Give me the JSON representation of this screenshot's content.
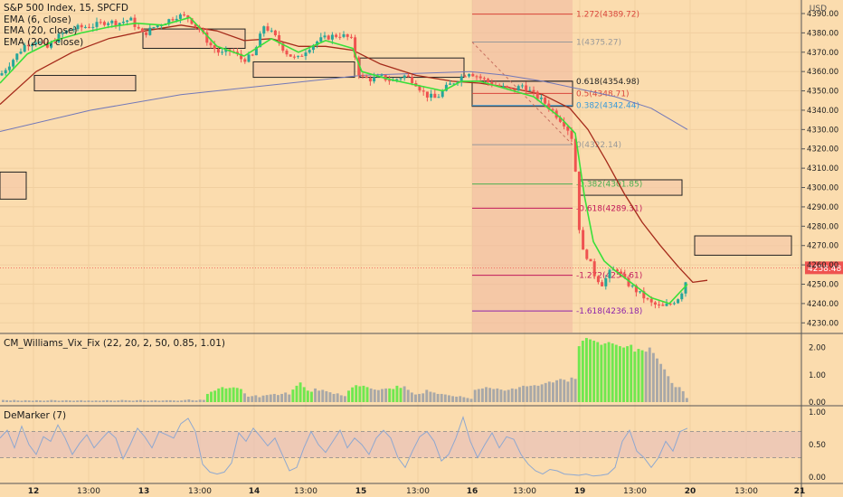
{
  "header": {
    "symbol": "S&P 500 Index, 15, SPCFD",
    "ema_lines": [
      "EMA (6, close)",
      "EMA (20, close)",
      "EMA (200, close)"
    ],
    "currency": "USD"
  },
  "panels": {
    "vix_fix_label": "CM_Williams_Vix_Fix (22, 20, 2, 50, 0.85, 1.01)",
    "demarker_label": "DeMarker (7)"
  },
  "colors": {
    "background": "#fbdcae",
    "up_candle": "#26a69a",
    "down_candle": "#ef5350",
    "ema6": "#39e039",
    "ema20": "#a52a1a",
    "ema200": "#7278b8",
    "vix_green": "#6fe84f",
    "vix_gray": "#a8a8a8",
    "demarker_line": "#8fa8d0",
    "fib_zone": "#f0b8a0"
  },
  "chart_data": [
    {
      "type": "candlestick",
      "title": "S&P 500 Index, 15, SPCFD",
      "y_unit": "USD",
      "ylim": [
        4225,
        4397
      ],
      "y_ticks": [
        4230,
        4240,
        4250,
        4260,
        4270,
        4280,
        4290,
        4300,
        4310,
        4320,
        4330,
        4340,
        4350,
        4360,
        4370,
        4380,
        4390
      ],
      "y_tick_labels": [
        "4230.00",
        "4240.00",
        "4250.00",
        "4260.00",
        "4270.00",
        "4280.00",
        "4290.00",
        "4300.00",
        "4310.00",
        "4320.00",
        "4330.00",
        "4340.00",
        "4350.00",
        "4360.00",
        "4370.00",
        "4380.00",
        "4390.00"
      ],
      "x_tick_labels": [
        "12",
        "13:00",
        "13",
        "13:00",
        "14",
        "13:00",
        "15",
        "13:00",
        "16",
        "13:00",
        "19",
        "13:00",
        "20",
        "13:00",
        "21"
      ],
      "last_price": 4258.48,
      "last_price_label": "4258.48",
      "price_path": [
        [
          0,
          4358
        ],
        [
          14,
          4366
        ],
        [
          28,
          4374
        ],
        [
          40,
          4376
        ],
        [
          52,
          4372
        ],
        [
          64,
          4378
        ],
        [
          78,
          4382
        ],
        [
          92,
          4383
        ],
        [
          106,
          4384
        ],
        [
          118,
          4386
        ],
        [
          130,
          4385
        ],
        [
          144,
          4387
        ],
        [
          158,
          4379
        ],
        [
          170,
          4383
        ],
        [
          184,
          4386
        ],
        [
          196,
          4389
        ],
        [
          208,
          4388
        ],
        [
          220,
          4382
        ],
        [
          232,
          4374
        ],
        [
          244,
          4369
        ],
        [
          256,
          4371
        ],
        [
          268,
          4366
        ],
        [
          280,
          4368
        ],
        [
          292,
          4384
        ],
        [
          304,
          4378
        ],
        [
          316,
          4370
        ],
        [
          328,
          4366
        ],
        [
          340,
          4372
        ],
        [
          352,
          4376
        ],
        [
          364,
          4378
        ],
        [
          376,
          4379
        ],
        [
          388,
          4377
        ],
        [
          398,
          4357
        ],
        [
          410,
          4356
        ],
        [
          422,
          4357
        ],
        [
          434,
          4355
        ],
        [
          446,
          4358
        ],
        [
          458,
          4355
        ],
        [
          470,
          4348
        ],
        [
          482,
          4346
        ],
        [
          494,
          4352
        ],
        [
          506,
          4356
        ],
        [
          518,
          4360
        ],
        [
          530,
          4357
        ],
        [
          542,
          4354
        ],
        [
          554,
          4352
        ],
        [
          566,
          4350
        ],
        [
          578,
          4353
        ],
        [
          590,
          4348
        ],
        [
          602,
          4344
        ],
        [
          614,
          4338
        ],
        [
          626,
          4332
        ],
        [
          634,
          4324
        ],
        [
          642,
          4268
        ],
        [
          650,
          4264
        ],
        [
          658,
          4254
        ],
        [
          666,
          4250
        ],
        [
          674,
          4256
        ],
        [
          682,
          4258
        ],
        [
          690,
          4252
        ],
        [
          700,
          4248
        ],
        [
          710,
          4244
        ],
        [
          720,
          4240
        ],
        [
          732,
          4238
        ],
        [
          742,
          4240
        ],
        [
          752,
          4244
        ],
        [
          760,
          4254
        ]
      ],
      "ema6_path": [
        [
          0,
          4354
        ],
        [
          30,
          4369
        ],
        [
          60,
          4376
        ],
        [
          90,
          4380
        ],
        [
          120,
          4383
        ],
        [
          150,
          4385
        ],
        [
          180,
          4384
        ],
        [
          210,
          4388
        ],
        [
          240,
          4373
        ],
        [
          270,
          4368
        ],
        [
          300,
          4377
        ],
        [
          330,
          4370
        ],
        [
          360,
          4376
        ],
        [
          390,
          4372
        ],
        [
          400,
          4360
        ],
        [
          430,
          4356
        ],
        [
          460,
          4353
        ],
        [
          490,
          4350
        ],
        [
          510,
          4355
        ],
        [
          530,
          4355
        ],
        [
          560,
          4351
        ],
        [
          590,
          4347
        ],
        [
          620,
          4336
        ],
        [
          636,
          4328
        ],
        [
          646,
          4296
        ],
        [
          656,
          4272
        ],
        [
          668,
          4262
        ],
        [
          680,
          4257
        ],
        [
          700,
          4250
        ],
        [
          720,
          4243
        ],
        [
          740,
          4240
        ],
        [
          760,
          4250
        ]
      ],
      "ema20_path": [
        [
          0,
          4343
        ],
        [
          40,
          4360
        ],
        [
          80,
          4370
        ],
        [
          120,
          4377
        ],
        [
          160,
          4381
        ],
        [
          200,
          4384
        ],
        [
          240,
          4381
        ],
        [
          270,
          4376
        ],
        [
          300,
          4377
        ],
        [
          330,
          4373
        ],
        [
          360,
          4373
        ],
        [
          390,
          4371
        ],
        [
          420,
          4364
        ],
        [
          460,
          4358
        ],
        [
          500,
          4355
        ],
        [
          530,
          4354
        ],
        [
          560,
          4352
        ],
        [
          600,
          4348
        ],
        [
          630,
          4341
        ],
        [
          650,
          4330
        ],
        [
          670,
          4314
        ],
        [
          690,
          4297
        ],
        [
          710,
          4282
        ],
        [
          730,
          4270
        ],
        [
          750,
          4259
        ],
        [
          766,
          4251
        ],
        [
          782,
          4252
        ]
      ],
      "ema200_path": [
        [
          0,
          4329
        ],
        [
          100,
          4340
        ],
        [
          200,
          4348
        ],
        [
          300,
          4353
        ],
        [
          400,
          4358
        ],
        [
          460,
          4359
        ],
        [
          520,
          4360
        ],
        [
          560,
          4358
        ],
        [
          600,
          4355
        ],
        [
          640,
          4351
        ],
        [
          680,
          4347
        ],
        [
          720,
          4341
        ],
        [
          760,
          4330
        ]
      ],
      "rect_zones": [
        {
          "x1": 0,
          "x2": 29,
          "top": 4308,
          "bottom": 4294
        },
        {
          "x1": 38,
          "x2": 150,
          "top": 4358,
          "bottom": 4350
        },
        {
          "x1": 158,
          "x2": 271,
          "top": 4382,
          "bottom": 4372
        },
        {
          "x1": 280,
          "x2": 392,
          "top": 4365,
          "bottom": 4357
        },
        {
          "x1": 398,
          "x2": 513,
          "top": 4367,
          "bottom": 4357
        },
        {
          "x1": 522,
          "x2": 633,
          "top": 4355,
          "bottom": 4342
        },
        {
          "x1": 641,
          "x2": 754,
          "top": 4304,
          "bottom": 4296
        },
        {
          "x1": 768,
          "x2": 875,
          "top": 4275,
          "bottom": 4265
        }
      ],
      "fibonacci": {
        "x_start": 522,
        "x_end": 633,
        "levels": [
          {
            "label": "1.272(4389.72)",
            "price": 4389.72,
            "color": "#d9453a"
          },
          {
            "label": "1(4375.27)",
            "price": 4375.27,
            "color": "#999999"
          },
          {
            "label": "0.618(4354.98)",
            "price": 4354.98,
            "color": "#222222"
          },
          {
            "label": "0.5(4348.71)",
            "price": 4348.71,
            "color": "#d9453a"
          },
          {
            "label": "0.382(4342.44)",
            "price": 4342.44,
            "color": "#3a9ad9"
          },
          {
            "label": "0(4322.14)",
            "price": 4322.14,
            "color": "#999999"
          },
          {
            "label": "-0.382(4301.85)",
            "price": 4301.85,
            "color": "#4caf50"
          },
          {
            "label": "-0.618(4289.31)",
            "price": 4289.31,
            "color": "#c2185b"
          },
          {
            "label": "-1.272(4254.61)",
            "price": 4254.61,
            "color": "#c2185b"
          },
          {
            "label": "-1.618(4236.18)",
            "price": 4236.18,
            "color": "#8e24aa"
          }
        ]
      }
    },
    {
      "type": "bar",
      "title": "CM_Williams_Vix_Fix (22, 20, 2, 50, 0.85, 1.01)",
      "ylim": [
        0,
        2.45
      ],
      "y_ticks": [
        0,
        1,
        2
      ],
      "y_tick_labels": [
        "0.00",
        "1.00",
        "2.00"
      ],
      "values": [
        0.08,
        0.07,
        0.06,
        0.08,
        0.06,
        0.05,
        0.07,
        0.06,
        0.05,
        0.07,
        0.06,
        0.05,
        0.06,
        0.08,
        0.07,
        0.05,
        0.06,
        0.07,
        0.06,
        0.05,
        0.06,
        0.07,
        0.05,
        0.06,
        0.05,
        0.06,
        0.05,
        0.06,
        0.07,
        0.06,
        0.05,
        0.06,
        0.08,
        0.07,
        0.06,
        0.05,
        0.07,
        0.08,
        0.06,
        0.05,
        0.06,
        0.07,
        0.05,
        0.06,
        0.07,
        0.07,
        0.06,
        0.05,
        0.06,
        0.08,
        0.1,
        0.07,
        0.06,
        0.09,
        0.08,
        0.3,
        0.38,
        0.42,
        0.5,
        0.55,
        0.5,
        0.52,
        0.54,
        0.52,
        0.48,
        0.32,
        0.2,
        0.22,
        0.25,
        0.18,
        0.24,
        0.26,
        0.28,
        0.3,
        0.26,
        0.3,
        0.35,
        0.28,
        0.46,
        0.6,
        0.72,
        0.55,
        0.42,
        0.38,
        0.5,
        0.42,
        0.45,
        0.4,
        0.36,
        0.3,
        0.32,
        0.25,
        0.22,
        0.42,
        0.54,
        0.62,
        0.58,
        0.6,
        0.55,
        0.5,
        0.46,
        0.44,
        0.48,
        0.5,
        0.5,
        0.48,
        0.6,
        0.52,
        0.58,
        0.45,
        0.35,
        0.28,
        0.3,
        0.32,
        0.45,
        0.38,
        0.35,
        0.3,
        0.3,
        0.28,
        0.25,
        0.22,
        0.2,
        0.22,
        0.18,
        0.15,
        0.12,
        0.45,
        0.48,
        0.5,
        0.55,
        0.52,
        0.48,
        0.5,
        0.46,
        0.42,
        0.45,
        0.5,
        0.48,
        0.55,
        0.6,
        0.58,
        0.6,
        0.62,
        0.6,
        0.65,
        0.7,
        0.75,
        0.72,
        0.8,
        0.85,
        0.82,
        0.75,
        0.9,
        0.85,
        2.05,
        2.25,
        2.35,
        2.3,
        2.25,
        2.2,
        2.1,
        2.15,
        2.2,
        2.15,
        2.1,
        2.05,
        2.0,
        2.05,
        2.1,
        1.85,
        1.95,
        1.9,
        1.85,
        2.0,
        1.8,
        1.6,
        1.4,
        1.2,
        0.95,
        0.7,
        0.55,
        0.55,
        0.4,
        0.15
      ],
      "green_ranges": [
        [
          55,
          64
        ],
        [
          78,
          83
        ],
        [
          93,
          98
        ],
        [
          104,
          107
        ],
        [
          155,
          172
        ]
      ]
    },
    {
      "type": "line",
      "title": "DeMarker (7)",
      "ylim": [
        -0.08,
        1.08
      ],
      "y_ticks": [
        0,
        0.5,
        1
      ],
      "y_tick_labels": [
        "0.00",
        "0.50",
        "1.00"
      ],
      "overbought": 0.7,
      "oversold": 0.3,
      "x": [
        0,
        8,
        16,
        24,
        32,
        40,
        48,
        56,
        64,
        72,
        80,
        88,
        96,
        104,
        112,
        120,
        128,
        136,
        144,
        152,
        160,
        168,
        176,
        184,
        192,
        200,
        208,
        216,
        224,
        232,
        240,
        248,
        256,
        264,
        272,
        280,
        288,
        296,
        304,
        312,
        320,
        328,
        336,
        344,
        352,
        360,
        368,
        376,
        384,
        392,
        400,
        408,
        416,
        424,
        432,
        440,
        448,
        456,
        464,
        472,
        480,
        488,
        496,
        504,
        512,
        520,
        528,
        536,
        544,
        552,
        560,
        568,
        576,
        584,
        592,
        600,
        608,
        616,
        624,
        632,
        640,
        648,
        656,
        664,
        672,
        680,
        688,
        696,
        704,
        712,
        720,
        728,
        736,
        744,
        752,
        760
      ],
      "values": [
        0.6,
        0.72,
        0.45,
        0.78,
        0.5,
        0.35,
        0.62,
        0.55,
        0.8,
        0.6,
        0.35,
        0.52,
        0.65,
        0.45,
        0.58,
        0.7,
        0.6,
        0.28,
        0.5,
        0.75,
        0.62,
        0.45,
        0.7,
        0.65,
        0.6,
        0.82,
        0.9,
        0.7,
        0.2,
        0.08,
        0.05,
        0.08,
        0.22,
        0.68,
        0.55,
        0.75,
        0.62,
        0.48,
        0.6,
        0.35,
        0.1,
        0.15,
        0.45,
        0.7,
        0.5,
        0.38,
        0.55,
        0.72,
        0.45,
        0.6,
        0.5,
        0.35,
        0.6,
        0.72,
        0.6,
        0.3,
        0.15,
        0.4,
        0.62,
        0.7,
        0.55,
        0.25,
        0.35,
        0.6,
        0.92,
        0.55,
        0.3,
        0.5,
        0.68,
        0.45,
        0.62,
        0.58,
        0.35,
        0.2,
        0.1,
        0.05,
        0.12,
        0.1,
        0.05,
        0.04,
        0.03,
        0.05,
        0.02,
        0.03,
        0.05,
        0.15,
        0.55,
        0.72,
        0.4,
        0.3,
        0.15,
        0.3,
        0.55,
        0.4,
        0.7,
        0.75
      ]
    }
  ]
}
